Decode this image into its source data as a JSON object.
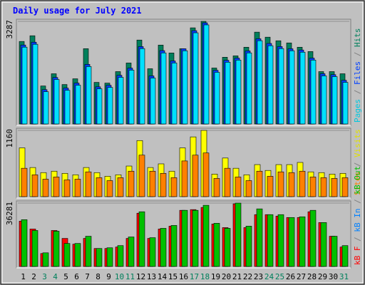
{
  "title": "Daily usage for July 2021",
  "categories": [
    "1",
    "2",
    "3",
    "4",
    "5",
    "6",
    "7",
    "8",
    "9",
    "10",
    "11",
    "12",
    "13",
    "14",
    "15",
    "16",
    "17",
    "18",
    "19",
    "20",
    "21",
    "22",
    "23",
    "24",
    "25",
    "26",
    "27",
    "28",
    "29",
    "30",
    "31"
  ],
  "category_colors": [
    "#000000",
    "#000000",
    "#00805c",
    "#00805c",
    "#000000",
    "#000000",
    "#000000",
    "#000000",
    "#000000",
    "#00805c",
    "#00805c",
    "#000000",
    "#000000",
    "#000000",
    "#000000",
    "#000000",
    "#00805c",
    "#00805c",
    "#000000",
    "#000000",
    "#000000",
    "#000000",
    "#000000",
    "#00805c",
    "#00805c",
    "#000000",
    "#000000",
    "#000000",
    "#000000",
    "#000000",
    "#00805c"
  ],
  "legend_separator": " / ",
  "chart_data": [
    {
      "type": "bar",
      "ylim": [
        0,
        3287
      ],
      "yticks": [
        3287
      ],
      "legend": [
        {
          "name": "Pages",
          "color": "#00c8e0"
        },
        {
          "name": "Files",
          "color": "#0040ff"
        },
        {
          "name": "Hits",
          "color": "#00805c"
        }
      ],
      "series": [
        {
          "color": "#00805c",
          "values": [
            2644,
            2827,
            1218,
            1609,
            1264,
            1448,
            2413,
            1333,
            1310,
            1678,
            1954,
            2689,
            1770,
            2528,
            2275,
            2413,
            3080,
            3287,
            1793,
            2138,
            2183,
            2459,
            2942,
            2781,
            2666,
            2597,
            2459,
            2321,
            1678,
            1678,
            1609
          ]
        },
        {
          "color": "#0040ff",
          "values": [
            2530,
            2620,
            1100,
            1490,
            1150,
            1310,
            1910,
            1190,
            1240,
            1560,
            1790,
            2480,
            1540,
            2350,
            2020,
            2410,
            2990,
            3240,
            1720,
            2040,
            2110,
            2340,
            2730,
            2580,
            2480,
            2410,
            2370,
            2110,
            1610,
            1580,
            1400
          ]
        },
        {
          "color": "#00e0ff",
          "values": [
            2461,
            2553,
            1035,
            1426,
            1081,
            1242,
            1840,
            1127,
            1173,
            1495,
            1725,
            2415,
            1472,
            2277,
            1955,
            2346,
            2921,
            3174,
            1656,
            1978,
            2047,
            2277,
            2668,
            2507,
            2415,
            2346,
            2300,
            2047,
            1541,
            1518,
            1334
          ]
        }
      ]
    },
    {
      "type": "bar",
      "ylim": [
        0,
        1160
      ],
      "yticks": [
        1160
      ],
      "legend": [
        {
          "name": "Sites",
          "color": "#ff8000"
        },
        {
          "name": "Visits",
          "color": "#e0e000"
        }
      ],
      "series": [
        {
          "color": "#ffff00",
          "values": [
            854,
            510,
            421,
            446,
            408,
            383,
            510,
            421,
            357,
            383,
            536,
            982,
            510,
            574,
            446,
            854,
            1046,
            1160,
            395,
            676,
            497,
            383,
            561,
            459,
            561,
            561,
            599,
            434,
            421,
            395,
            408
          ]
        },
        {
          "color": "#ff8000",
          "values": [
            497,
            383,
            306,
            344,
            293,
            306,
            434,
            332,
            281,
            332,
            446,
            727,
            446,
            408,
            332,
            625,
            727,
            765,
            319,
            497,
            344,
            281,
            446,
            357,
            434,
            421,
            446,
            344,
            332,
            319,
            332
          ]
        }
      ]
    },
    {
      "type": "bar",
      "ylim": [
        0,
        36281
      ],
      "yticks": [
        36281
      ],
      "legend": [
        {
          "name": "kB F",
          "color": "#ff0000"
        },
        {
          "name": "kB In",
          "color": "#0080ff"
        },
        {
          "name": "kB Out",
          "color": "#00c000"
        }
      ],
      "series": [
        {
          "color": "#ff0000",
          "values": [
            25956,
            21424,
            7416,
            20600,
            16068,
            12772,
            16068,
            10300,
            10300,
            11124,
            16068,
            30488,
            16068,
            21424,
            23072,
            32136,
            32548,
            33784,
            24308,
            22248,
            35844,
            22248,
            29664,
            29664,
            28840,
            28016,
            28016,
            31312,
            25132,
            17304,
            11124
          ]
        },
        {
          "color": "#00c000",
          "values": [
            26780,
            20600,
            7828,
            20188,
            13184,
            13184,
            17304,
            10300,
            10712,
            11948,
            16892,
            31312,
            16480,
            21836,
            23484,
            32136,
            32136,
            35020,
            24720,
            21836,
            36281,
            23072,
            32960,
            29664,
            29664,
            28016,
            28428,
            32136,
            25132,
            17304,
            11948
          ]
        }
      ]
    }
  ]
}
